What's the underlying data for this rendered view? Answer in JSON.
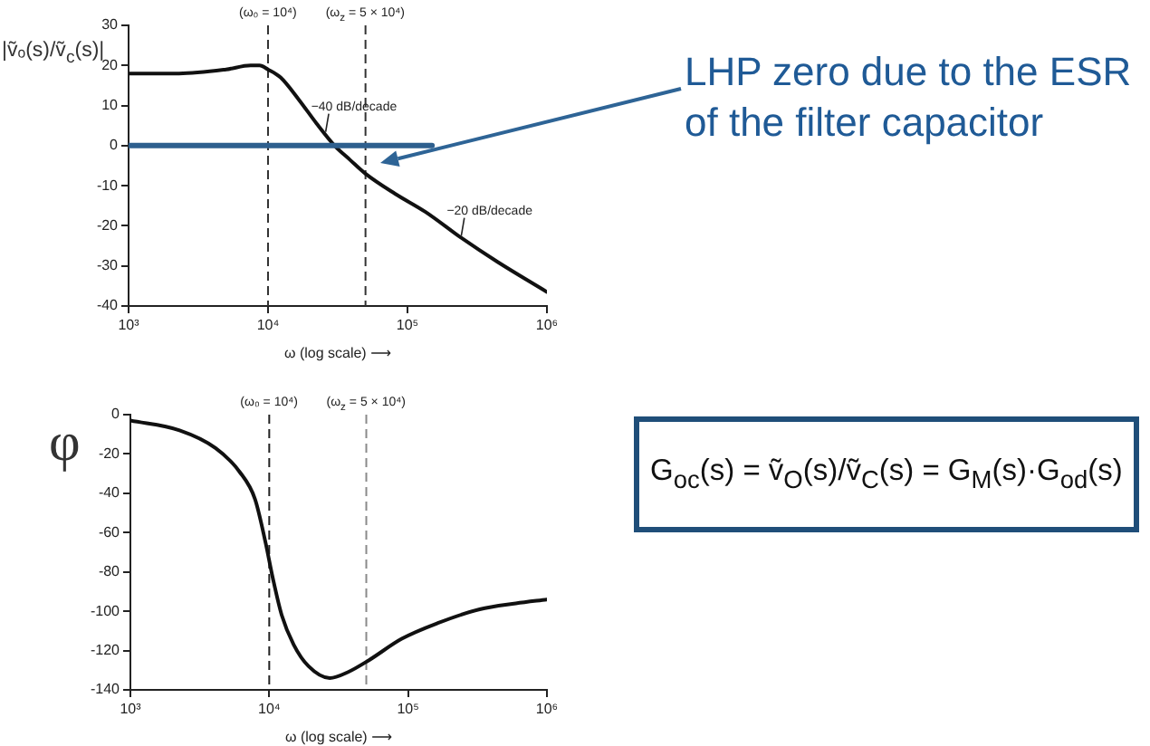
{
  "chart_data": [
    {
      "type": "line",
      "log": "x",
      "marker": "none",
      "xlabel": "ω (log scale) ⟶",
      "ylabel": "|ṽₒ(s)/ṽ$_{c}$(s)|",
      "xlim": [
        1000,
        1000000
      ],
      "xticks": [
        {
          "value": 1000,
          "label": "10³"
        },
        {
          "value": 10000,
          "label": "10⁴"
        },
        {
          "value": 100000,
          "label": "10⁵"
        },
        {
          "value": 1000000,
          "label": "10⁶"
        }
      ],
      "ylim": [
        -40,
        30
      ],
      "yticks": [
        30,
        20,
        10,
        0,
        -10,
        -20,
        -30,
        -40
      ],
      "series": [
        {
          "color": "#111111",
          "x": [
            1000,
            2300,
            5000,
            7500,
            8700,
            10000,
            12300,
            16600,
            22300,
            30000,
            38600,
            50000,
            81400,
            134000,
            243000,
            442000,
            1000000
          ],
          "values": [
            18,
            18,
            19,
            20,
            20,
            19,
            17,
            11.5,
            5.5,
            0,
            -3.5,
            -7,
            -12,
            -16.5,
            -23,
            -29,
            -36.5
          ]
        },
        {
          "color": "#2e5f8e",
          "x": [
            1000,
            150000
          ],
          "values": [
            0,
            0
          ]
        }
      ],
      "ref_lines": [
        {
          "axis": "x",
          "value": 10000,
          "line_style": "dashed",
          "color": "#333333"
        },
        {
          "axis": "x",
          "value": 50000,
          "line_style": "dashed",
          "color": "#333333"
        }
      ],
      "annotations": [
        {
          "text": "(ω₀ = 10⁴)",
          "x": 10000,
          "y": 30
        },
        {
          "text": "(ω$_{z}$ = 5 × 10⁴)",
          "x": 50000,
          "y": 30
        },
        {
          "text": "−40 dB/decade",
          "x": 25900,
          "y": 3
        },
        {
          "text": "−20 dB/decade",
          "x": 243000,
          "y": -23
        },
        "LHP zero due to the ESR of the filter capacitor"
      ]
    },
    {
      "type": "line",
      "log": "x",
      "marker": "none",
      "xlabel": "ω (log scale) ⟶",
      "ylabel": "φ",
      "xlim": [
        1000,
        1000000
      ],
      "xticks": [
        {
          "value": 1000,
          "label": "10³"
        },
        {
          "value": 10000,
          "label": "10⁴"
        },
        {
          "value": 100000,
          "label": "10⁵"
        },
        {
          "value": 1000000,
          "label": "10⁶"
        }
      ],
      "ylim": [
        -140,
        0
      ],
      "yticks": [
        0,
        -20,
        -40,
        -60,
        -80,
        -100,
        -120,
        -140
      ],
      "series": [
        {
          "color": "#111111",
          "x": [
            1000,
            2260,
            4100,
            6100,
            7900,
            9400,
            10600,
            12300,
            15000,
            19200,
            27300,
            36800,
            52000,
            90000,
            164000,
            328000,
            597000,
            1000000
          ],
          "values": [
            -3,
            -8,
            -17,
            -29,
            -43,
            -65,
            -83,
            -102,
            -117,
            -128,
            -134,
            -131,
            -125,
            -114,
            -106,
            -99,
            -96,
            -94
          ]
        }
      ],
      "ref_lines": [
        {
          "axis": "x",
          "value": 10000,
          "line_style": "dashed",
          "color": "#222222"
        },
        {
          "axis": "x",
          "value": 50000,
          "line_style": "dashed",
          "color": "#8a8a8a"
        }
      ],
      "annotations": [
        {
          "text": "(ω₀ = 10⁴)",
          "x": 10000,
          "y": 0
        },
        {
          "text": "(ω$_{z}$ = 5 × 10⁴)",
          "x": 50000,
          "y": 0
        },
        "G$_{oc}$(s) = ṽ$_{O}$(s)/ṽ$_{C}$(s) = G$_{M}$(s)·G$_{od}$(s)"
      ]
    }
  ]
}
